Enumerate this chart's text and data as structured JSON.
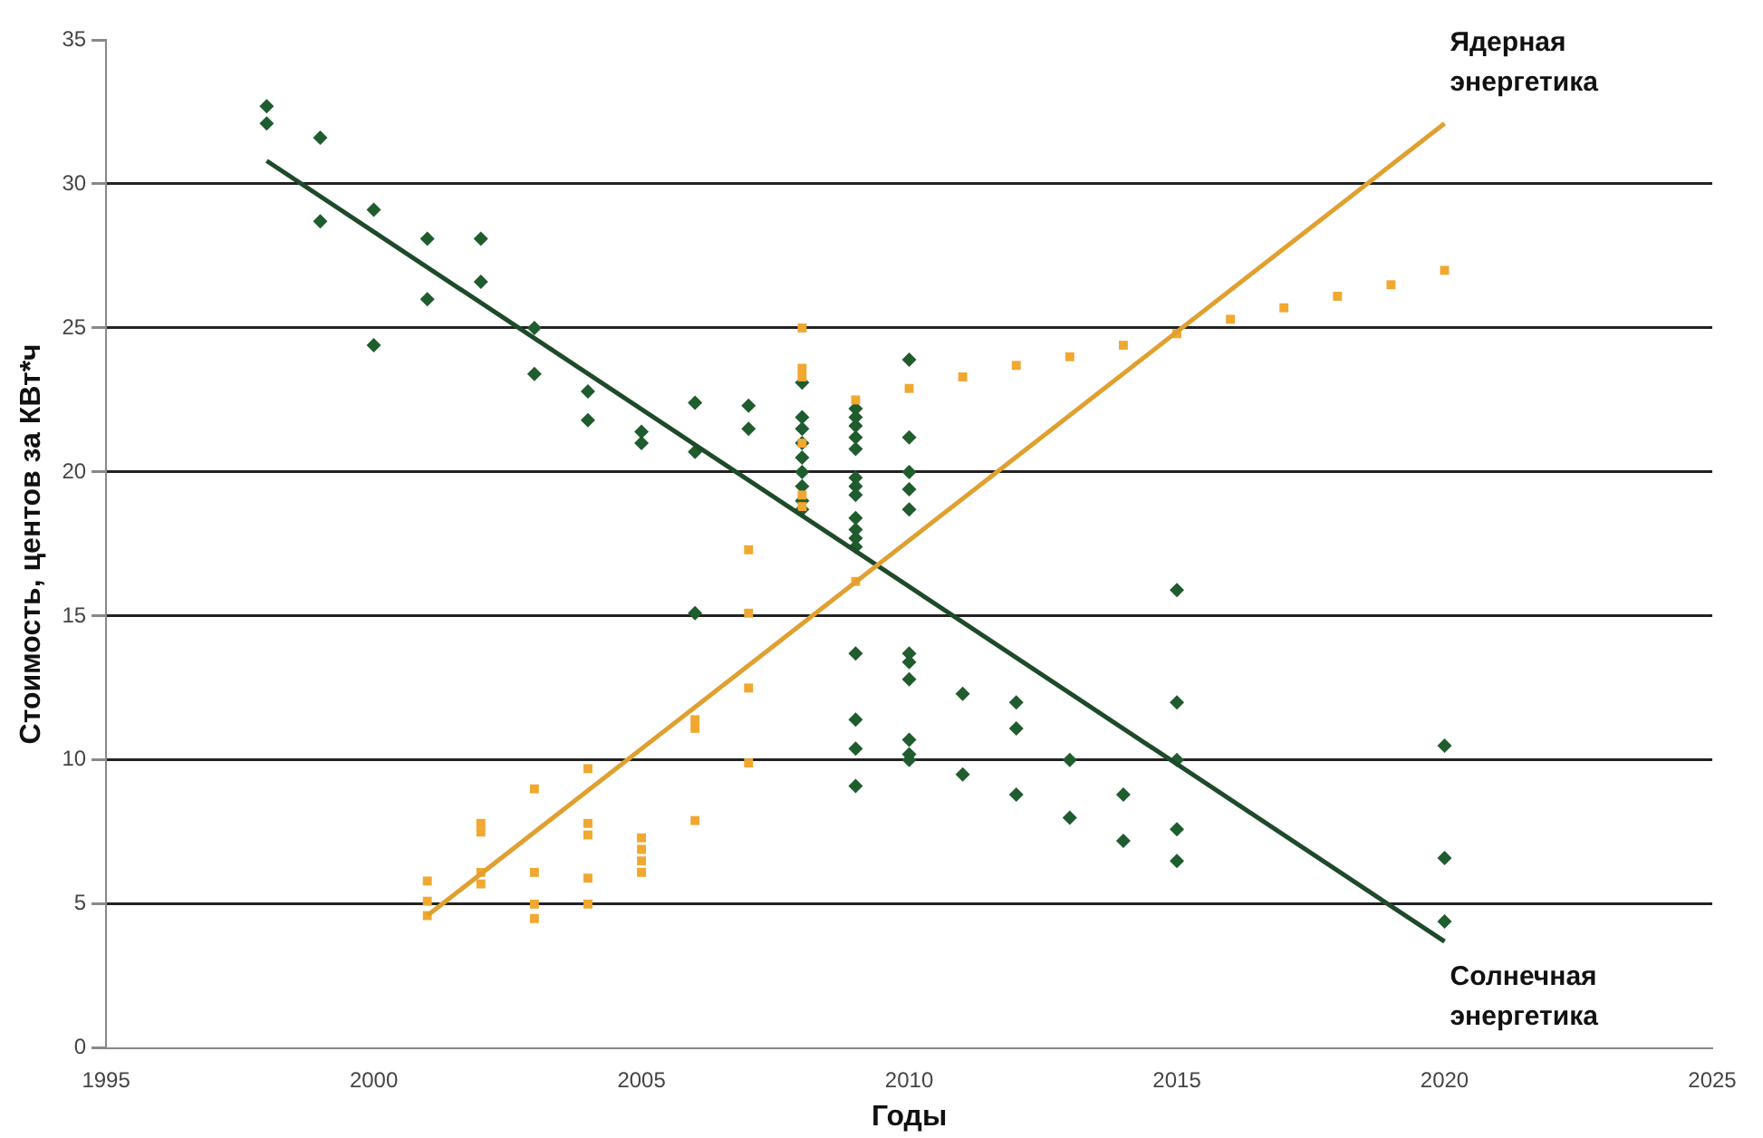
{
  "chart_data": {
    "type": "scatter",
    "xlabel": "Годы",
    "ylabel": "Стоимость, центов за КВт*ч",
    "xlim": [
      1995,
      2025
    ],
    "xticks": [
      1995,
      2000,
      2005,
      2010,
      2015,
      2020,
      2025
    ],
    "ylim": [
      0,
      35
    ],
    "yticks": [
      0,
      5,
      10,
      15,
      20,
      25,
      30,
      35
    ],
    "grid": "y",
    "legend": false,
    "series": [
      {
        "name": "Солнечная энергетика",
        "color": "#1f5c2e",
        "marker": "diamond",
        "x": [
          1998,
          1998,
          1999,
          1999,
          2000,
          2000,
          2001,
          2001,
          2002,
          2002,
          2003,
          2003,
          2004,
          2004,
          2005,
          2005,
          2006,
          2006,
          2006,
          2007,
          2007,
          2008,
          2008,
          2008,
          2008,
          2008,
          2008,
          2008,
          2008,
          2008,
          2009,
          2009,
          2009,
          2009,
          2009,
          2009,
          2009,
          2009,
          2009,
          2009,
          2009,
          2009,
          2009,
          2009,
          2009,
          2009,
          2010,
          2010,
          2010,
          2010,
          2010,
          2010,
          2010,
          2010,
          2010,
          2010,
          2010,
          2011,
          2011,
          2012,
          2012,
          2012,
          2013,
          2013,
          2014,
          2014,
          2015,
          2015,
          2015,
          2015,
          2015,
          2020,
          2020,
          2020
        ],
        "values": [
          32.7,
          32.1,
          31.6,
          28.7,
          29.1,
          24.4,
          28.1,
          26.0,
          28.1,
          26.6,
          25.0,
          23.4,
          22.8,
          21.8,
          21.4,
          21.0,
          22.4,
          20.7,
          15.1,
          22.3,
          21.5,
          23.1,
          21.9,
          21.5,
          21.0,
          20.5,
          20.0,
          19.5,
          19.0,
          18.7,
          22.2,
          21.9,
          21.6,
          21.2,
          20.8,
          19.8,
          19.5,
          19.2,
          18.4,
          18.0,
          17.7,
          17.4,
          13.7,
          11.4,
          10.4,
          9.1,
          23.9,
          21.2,
          20.0,
          19.4,
          18.7,
          13.7,
          13.4,
          12.8,
          10.7,
          10.2,
          10.0,
          12.3,
          9.5,
          12.0,
          11.1,
          8.8,
          10.0,
          8.0,
          8.8,
          7.2,
          15.9,
          12.0,
          10.0,
          7.6,
          6.5,
          10.5,
          6.6,
          4.4
        ]
      },
      {
        "name": "Ядерная энергетика",
        "color": "#f0a830",
        "marker": "square",
        "x": [
          2001,
          2001,
          2001,
          2002,
          2002,
          2002,
          2002,
          2003,
          2003,
          2003,
          2003,
          2004,
          2004,
          2004,
          2004,
          2004,
          2005,
          2005,
          2005,
          2005,
          2006,
          2006,
          2006,
          2007,
          2007,
          2007,
          2007,
          2008,
          2008,
          2008,
          2008,
          2008,
          2008,
          2009,
          2009,
          2010,
          2011,
          2012,
          2013,
          2014,
          2015,
          2016,
          2017,
          2018,
          2019,
          2020
        ],
        "values": [
          5.8,
          5.1,
          4.6,
          7.8,
          7.5,
          6.1,
          5.7,
          9.0,
          6.1,
          5.0,
          4.5,
          9.7,
          7.8,
          7.4,
          5.9,
          5.0,
          7.3,
          6.9,
          6.5,
          6.1,
          11.4,
          11.1,
          7.9,
          17.3,
          15.1,
          12.5,
          9.9,
          25.0,
          23.6,
          23.3,
          21.0,
          19.2,
          18.8,
          22.5,
          16.2,
          22.9,
          23.3,
          23.7,
          24.0,
          24.4,
          24.8,
          25.3,
          25.7,
          26.1,
          26.5,
          27.0
        ]
      },
      {
        "type": "line",
        "color": "#1f4a2a",
        "marker": "none",
        "x": [
          1998,
          2020
        ],
        "values": [
          30.8,
          3.7
        ]
      },
      {
        "type": "line",
        "color": "#e0a030",
        "marker": "none",
        "x": [
          2001,
          2020
        ],
        "values": [
          4.6,
          32.1
        ]
      }
    ]
  }
}
